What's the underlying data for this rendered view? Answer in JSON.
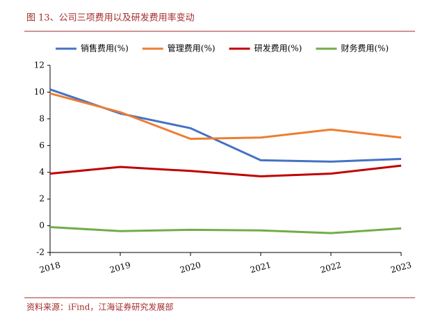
{
  "chart_data": {
    "type": "line",
    "title": "图 13、公司三项费用以及研发费用率变动",
    "source": "资料来源：iFind，江海证券研究发展部",
    "categories": [
      "2018",
      "2019",
      "2020",
      "2021",
      "2022",
      "2023"
    ],
    "series": [
      {
        "name": "销售费用(%)",
        "color": "#4472c4",
        "values": [
          10.2,
          8.4,
          7.3,
          4.9,
          4.8,
          5.0
        ]
      },
      {
        "name": "管理费用(%)",
        "color": "#ed7d31",
        "values": [
          9.9,
          8.5,
          6.5,
          6.6,
          7.2,
          6.6
        ]
      },
      {
        "name": "研发费用(%)",
        "color": "#c00000",
        "values": [
          3.9,
          4.4,
          4.1,
          3.7,
          3.9,
          4.5
        ]
      },
      {
        "name": "财务费用(%)",
        "color": "#70ad47",
        "values": [
          -0.1,
          -0.4,
          -0.3,
          -0.35,
          -0.55,
          -0.2
        ]
      }
    ],
    "ylim": [
      -2,
      12
    ],
    "yticks": [
      -2,
      0,
      2,
      4,
      6,
      8,
      10,
      12
    ],
    "grid": false
  }
}
